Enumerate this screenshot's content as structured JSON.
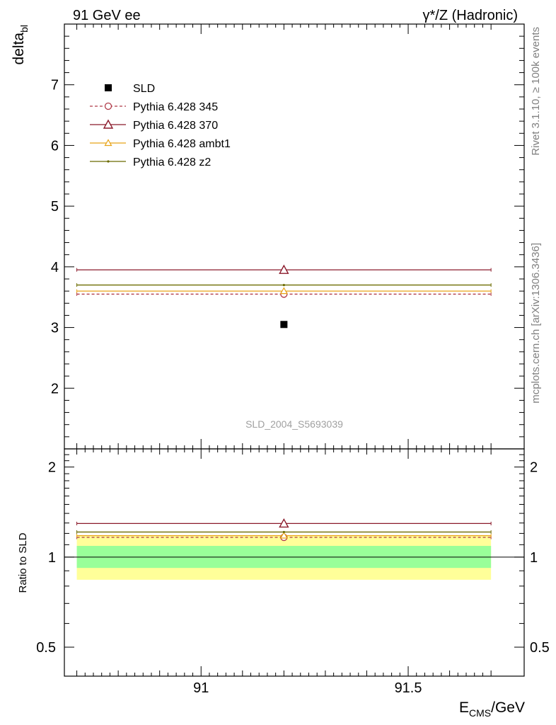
{
  "header": {
    "left": "91 GeV ee",
    "right": "γ*/Z (Hadronic)"
  },
  "side_labels": {
    "rivet": "Rivet 3.1.10, ≥ 100k events",
    "source": "mcplots.cern.ch [arXiv:1306.3436]"
  },
  "chart_data": [
    {
      "type": "scatter",
      "ylabel_main": "delta",
      "ylabel_sub": "bl",
      "watermark": "SLD_2004_S5693039",
      "xlim": [
        90.67,
        91.78
      ],
      "ylim": [
        1.0,
        8.0
      ],
      "xticks_major": [
        91,
        91.5
      ],
      "yticks_major": [
        2,
        3,
        4,
        5,
        6,
        7
      ],
      "data": {
        "name": "SLD",
        "x": 91.2,
        "y": 3.05,
        "color": "#000000"
      },
      "series": [
        {
          "name": "Pythia 6.428 345",
          "x": [
            90.7,
            91.7
          ],
          "y": 3.55,
          "color": "#b03a48",
          "style": "dashed",
          "marker": "circle"
        },
        {
          "name": "Pythia 6.428 370",
          "x": [
            90.7,
            91.7
          ],
          "y": 3.95,
          "color": "#8b1a2b",
          "style": "solid",
          "marker": "triangle"
        },
        {
          "name": "Pythia 6.428 ambt1",
          "x": [
            90.7,
            91.7
          ],
          "y": 3.6,
          "color": "#e8a317",
          "style": "solid",
          "marker": "triangle-small"
        },
        {
          "name": "Pythia 6.428 z2",
          "x": [
            90.7,
            91.7
          ],
          "y": 3.7,
          "color": "#6b6b00",
          "style": "solid",
          "marker": "dot"
        }
      ]
    },
    {
      "type": "scatter",
      "ylabel": "Ratio to SLD",
      "xlabel_main": "E",
      "xlabel_sub": "CMS",
      "xlabel_unit": "/GeV",
      "xlim": [
        90.67,
        91.78
      ],
      "ylim": [
        0.4,
        2.3
      ],
      "yscale": "log",
      "yticks_major": [
        0.5,
        1,
        2
      ],
      "ytick_labels": [
        "0.5",
        "1",
        "2"
      ],
      "xticks_major": [
        91,
        91.5
      ],
      "xtick_labels": [
        "91",
        "91.5"
      ],
      "bands": [
        {
          "low": 0.84,
          "high": 1.18,
          "color": "#ffff99"
        },
        {
          "low": 0.92,
          "high": 1.09,
          "color": "#99ff99"
        }
      ],
      "series": [
        {
          "name": "Pythia 6.428 345",
          "y": 1.164,
          "color": "#b03a48",
          "style": "dashed",
          "marker": "circle"
        },
        {
          "name": "Pythia 6.428 370",
          "y": 1.295,
          "color": "#8b1a2b",
          "style": "solid",
          "marker": "triangle"
        },
        {
          "name": "Pythia 6.428 ambt1",
          "y": 1.18,
          "color": "#e8a317",
          "style": "solid",
          "marker": "triangle-small"
        },
        {
          "name": "Pythia 6.428 z2",
          "y": 1.213,
          "color": "#6b6b00",
          "style": "solid",
          "marker": "dot"
        }
      ]
    }
  ]
}
